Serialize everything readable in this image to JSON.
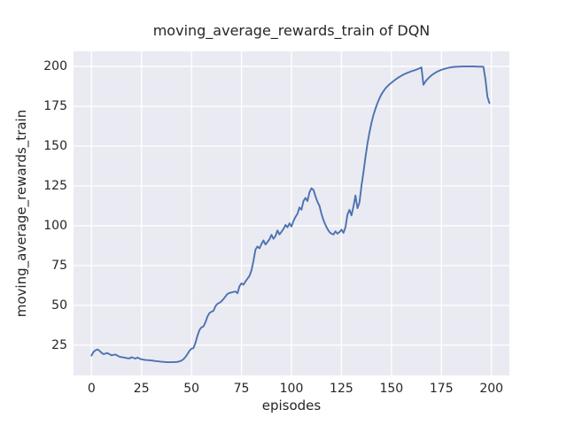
{
  "figure": {
    "background": "#ffffff"
  },
  "chart_data": {
    "type": "line",
    "title": "moving_average_rewards_train of DQN",
    "xlabel": "episodes",
    "ylabel": "moving_average_rewards_train",
    "x0": 0,
    "dx": 1,
    "y_values": [
      18.5,
      20.8,
      21.8,
      22.3,
      21.5,
      20.2,
      19.4,
      19.7,
      20.0,
      19.3,
      18.6,
      18.9,
      19.1,
      18.4,
      17.7,
      17.5,
      17.3,
      17.0,
      16.8,
      16.7,
      17.4,
      17.0,
      16.6,
      17.2,
      16.6,
      16.1,
      15.9,
      15.7,
      15.6,
      15.5,
      15.4,
      15.2,
      15.0,
      14.9,
      14.7,
      14.6,
      14.5,
      14.4,
      14.3,
      14.3,
      14.3,
      14.4,
      14.4,
      14.5,
      14.8,
      15.3,
      16.2,
      17.6,
      19.5,
      21.5,
      22.8,
      23.2,
      26.5,
      31.0,
      34.5,
      36.2,
      36.8,
      39.5,
      43.0,
      45.2,
      46.0,
      46.6,
      49.5,
      51.0,
      51.6,
      52.6,
      54.0,
      55.6,
      57.2,
      57.8,
      58.1,
      58.4,
      58.7,
      57.6,
      62.0,
      63.8,
      63.0,
      65.0,
      66.8,
      68.5,
      72.0,
      78.0,
      85.0,
      87.0,
      85.8,
      88.5,
      90.8,
      88.2,
      89.8,
      91.5,
      94.3,
      91.8,
      93.5,
      97.0,
      94.5,
      96.2,
      98.0,
      100.5,
      99.0,
      101.5,
      99.5,
      103.0,
      105.5,
      107.5,
      111.5,
      110.0,
      115.5,
      117.5,
      115.5,
      121.0,
      123.5,
      122.5,
      118.5,
      115.0,
      112.5,
      107.5,
      103.5,
      100.5,
      98.0,
      96.0,
      95.0,
      94.5,
      96.5,
      95.0,
      96.0,
      97.5,
      95.5,
      99.0,
      107.0,
      110.0,
      106.5,
      112.0,
      119.0,
      111.0,
      114.5,
      125.0,
      133.5,
      143.0,
      151.5,
      158.5,
      164.5,
      169.5,
      173.5,
      177.0,
      180.0,
      182.5,
      184.5,
      186.2,
      187.6,
      188.8,
      189.8,
      190.8,
      191.8,
      192.7,
      193.5,
      194.2,
      194.9,
      195.5,
      196.0,
      196.5,
      197.0,
      197.4,
      197.8,
      198.3,
      198.8,
      199.4,
      188.5,
      190.5,
      192.0,
      193.3,
      194.4,
      195.3,
      196.1,
      196.8,
      197.4,
      197.9,
      198.3,
      198.7,
      199.0,
      199.3,
      199.5,
      199.7,
      199.8,
      199.9,
      199.9,
      200.0,
      200.0,
      200.0,
      200.0,
      200.0,
      200.0,
      200.0,
      200.0,
      199.9,
      199.9,
      199.9,
      199.8,
      192.0,
      181.0,
      177.0
    ],
    "xticks": [
      0,
      25,
      50,
      75,
      100,
      125,
      150,
      175,
      200
    ],
    "yticks": [
      25,
      50,
      75,
      100,
      125,
      150,
      175,
      200
    ],
    "xlim": [
      -9,
      209
    ],
    "ylim": [
      6,
      209.5
    ],
    "grid": true,
    "line_color": "#4C72B0",
    "axes_background": "#EAEAF2",
    "grid_color": "#ffffff",
    "text_color": "#262626"
  }
}
